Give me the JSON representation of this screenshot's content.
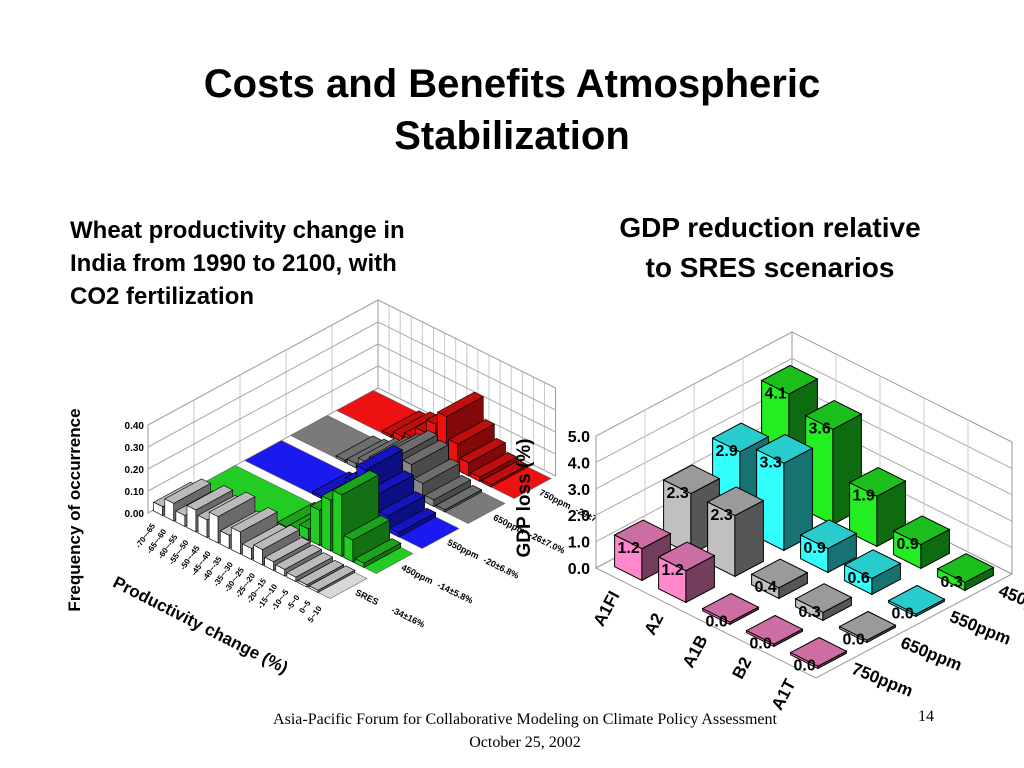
{
  "slide": {
    "title_line1": "Costs and Benefits Atmospheric",
    "title_line2": "Stabilization",
    "left_caption_line1": "Wheat productivity change in",
    "left_caption_line2": "India from 1990 to 2100, with",
    "left_caption_line3": "CO2 fertilization",
    "right_caption_line1": "GDP reduction relative",
    "right_caption_line2": "to SRES scenarios",
    "footer_line1": "Asia-Pacific Forum for Collaborative Modeling on Climate Policy Assessment",
    "footer_line2": "October 25, 2002",
    "page_number": "14"
  },
  "chart_data": [
    {
      "type": "bar",
      "subtype": "3d-histogram",
      "title": "",
      "xlabel": "Productivity change (%)",
      "ylabel": "Frequency of occurrence",
      "ylim": [
        0,
        0.4
      ],
      "y_ticks": [
        "0.40",
        "0.30",
        "0.20",
        "0.10",
        "0.00"
      ],
      "categories": [
        "-70~-65",
        "-65~-60",
        "-60~-55",
        "-55~-50",
        "-50~-45",
        "-45~-40",
        "-40~-35",
        "-35~-30",
        "-30~-25",
        "-25~-20",
        "-20~-15",
        "-15~-10",
        "-10~-5",
        "-5~0",
        "0~5",
        "5~10"
      ],
      "series": [
        {
          "name": "SRES",
          "stat": "-34±16%",
          "color": "#ffffff",
          "values": [
            0.04,
            0.08,
            0.05,
            0.1,
            0.08,
            0.12,
            0.06,
            0.1,
            0.05,
            0.07,
            0.04,
            0.03,
            0.02,
            0.01,
            0.01,
            0.0
          ]
        },
        {
          "name": "450ppm",
          "stat": "-14±5.8%",
          "color": "#22cc22",
          "values": [
            0.0,
            0.0,
            0.0,
            0.0,
            0.0,
            0.0,
            0.0,
            0.01,
            0.02,
            0.05,
            0.16,
            0.23,
            0.28,
            0.1,
            0.02,
            0.0
          ]
        },
        {
          "name": "550ppm",
          "stat": "-20±6.8%",
          "color": "#1a1aee",
          "values": [
            0.0,
            0.0,
            0.0,
            0.0,
            0.0,
            0.0,
            0.01,
            0.02,
            0.06,
            0.15,
            0.23,
            0.14,
            0.07,
            0.02,
            0.0,
            0.0
          ]
        },
        {
          "name": "650ppm",
          "stat": "-26±7.0%",
          "color": "#888888",
          "values": [
            0.0,
            0.0,
            0.0,
            0.0,
            0.01,
            0.02,
            0.05,
            0.08,
            0.12,
            0.16,
            0.14,
            0.08,
            0.03,
            0.01,
            0.0,
            0.0
          ]
        },
        {
          "name": "750ppm",
          "stat": "-29±7.8%",
          "color": "#ee1111",
          "values": [
            0.0,
            0.0,
            0.0,
            0.0,
            0.01,
            0.03,
            0.05,
            0.1,
            0.16,
            0.22,
            0.12,
            0.06,
            0.02,
            0.01,
            0.0,
            0.0
          ]
        }
      ]
    },
    {
      "type": "bar",
      "subtype": "3d-bar",
      "title": "",
      "xlabel": "",
      "ylabel": "GDP loss (%)",
      "ylim": [
        0,
        5
      ],
      "y_ticks": [
        "5.0",
        "4.0",
        "3.0",
        "2.0",
        "1.0",
        "0.0"
      ],
      "categories": [
        "A1FI",
        "A2",
        "A1B",
        "B2",
        "A1T"
      ],
      "series": [
        {
          "name": "750ppm",
          "color": "#ff88cc",
          "values": [
            1.2,
            1.2,
            0.0,
            0.0,
            0.0
          ]
        },
        {
          "name": "650ppm",
          "color": "#c0c0c0",
          "values": [
            2.3,
            2.3,
            0.4,
            0.3,
            0.0
          ]
        },
        {
          "name": "550ppm",
          "color": "#33ffff",
          "values": [
            2.9,
            3.3,
            0.9,
            0.6,
            0.0
          ]
        },
        {
          "name": "450ppm",
          "color": "#22ee22",
          "values": [
            4.1,
            3.6,
            1.9,
            0.9,
            0.3
          ]
        }
      ]
    }
  ]
}
